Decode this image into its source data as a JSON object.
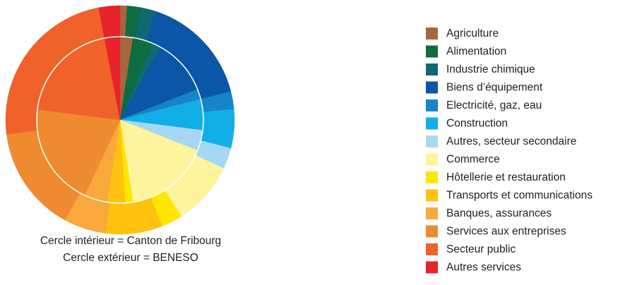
{
  "chart_data": {
    "type": "pie",
    "categories": [
      "Agriculture",
      "Alimentation",
      "Industrie chimique",
      "Biens d’équipement",
      "Electricité, gaz, eau",
      "Construction",
      "Autres, secteur secondaire",
      "Commerce",
      "Hôtellerie et restauration",
      "Transports et communications",
      "Banques, assurances",
      "Services aux entreprises",
      "Secteur public",
      "Autres services"
    ],
    "colors": [
      "#a5673f",
      "#0f6b40",
      "#0e6a70",
      "#0b56a6",
      "#1685c8",
      "#12afe6",
      "#a7d8f3",
      "#fff49e",
      "#ffe600",
      "#ffc20f",
      "#f9a83c",
      "#ee8a2f",
      "#f0622b",
      "#e8222b"
    ],
    "series": [
      {
        "values": [
          2.5,
          4,
          1.5,
          11,
          2,
          6,
          4,
          16.5,
          1.5,
          3.5,
          4.5,
          20,
          20,
          3
        ]
      },
      {
        "values": [
          1,
          2,
          2,
          16,
          2.5,
          5.5,
          3,
          9,
          3,
          8,
          6,
          15,
          24,
          3
        ]
      }
    ],
    "notes": [
      "Cercle intérieur = Canton de Fribourg",
      "Cercle extérieur = BENESO"
    ]
  }
}
